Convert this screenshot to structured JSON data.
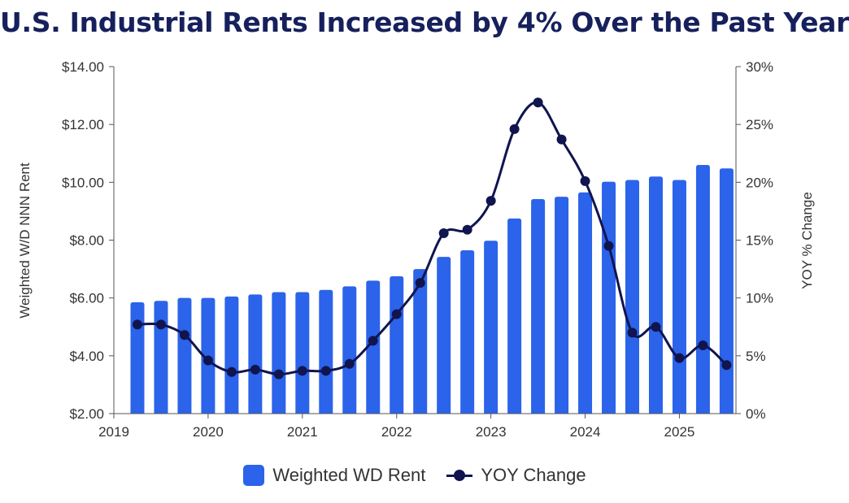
{
  "chart_data": {
    "type": "bar",
    "title": "U.S. Industrial Rents Increased by 4% Over the Past Year",
    "x_tick_labels": [
      "2019",
      "2020",
      "2021",
      "2022",
      "2023",
      "2024",
      "2025"
    ],
    "y_left": {
      "label": "Weighted W/D NNN Rent",
      "lim": [
        2,
        14
      ],
      "ticks": [
        "$2.00",
        "$4.00",
        "$6.00",
        "$8.00",
        "$10.00",
        "$12.00",
        "$14.00"
      ]
    },
    "y_right": {
      "label": "YOY % Change",
      "lim": [
        0,
        30
      ],
      "ticks": [
        "0%",
        "5%",
        "10%",
        "15%",
        "20%",
        "25%",
        "30%"
      ]
    },
    "x": [
      2019.25,
      2019.5,
      2019.75,
      2020.0,
      2020.25,
      2020.5,
      2020.75,
      2021.0,
      2021.25,
      2021.5,
      2021.75,
      2022.0,
      2022.25,
      2022.5,
      2022.75,
      2023.0,
      2023.25,
      2023.5,
      2023.75,
      2024.0,
      2024.25,
      2024.5,
      2024.75,
      2025.0,
      2025.25,
      2025.5
    ],
    "series": [
      {
        "name": "Weighted WD Rent",
        "kind": "bar",
        "axis": "left",
        "color": "#2b63ea",
        "values": [
          5.85,
          5.9,
          6.0,
          6.0,
          6.05,
          6.12,
          6.2,
          6.2,
          6.28,
          6.4,
          6.6,
          6.75,
          7.0,
          7.42,
          7.65,
          7.98,
          8.75,
          9.42,
          9.5,
          9.65,
          10.02,
          10.08,
          10.2,
          10.08,
          10.6,
          10.48
        ]
      },
      {
        "name": "YOY Change",
        "kind": "line",
        "axis": "right",
        "color": "#10154f",
        "values": [
          7.7,
          7.7,
          6.8,
          4.6,
          3.6,
          3.8,
          3.4,
          3.7,
          3.7,
          4.3,
          6.3,
          8.6,
          11.3,
          15.6,
          15.9,
          18.4,
          24.6,
          26.9,
          23.7,
          20.1,
          14.5,
          7.0,
          7.5,
          4.8,
          5.9,
          4.2
        ]
      }
    ],
    "grid": false,
    "legend": "bottom"
  }
}
